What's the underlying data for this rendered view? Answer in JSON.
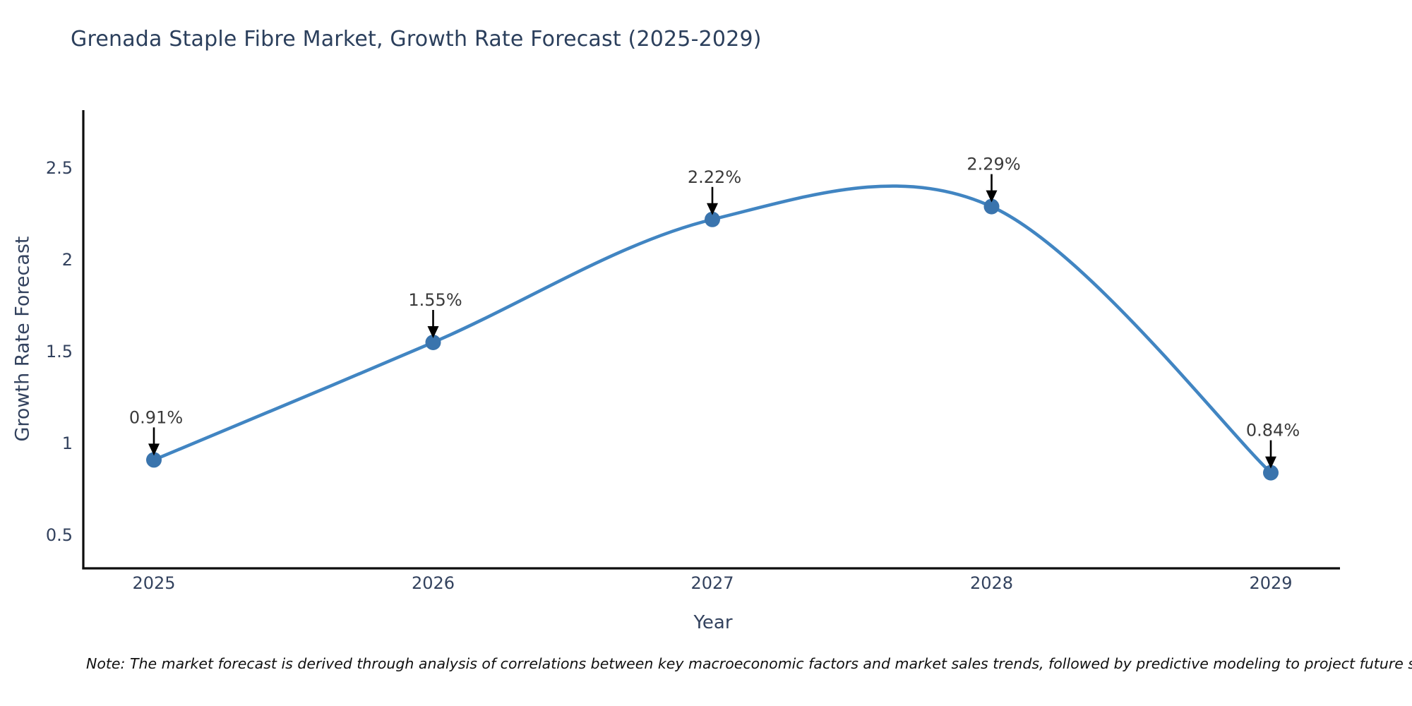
{
  "title": "Grenada Staple Fibre Market, Growth Rate Forecast (2025-2029)",
  "note": "Note: The market forecast is derived through analysis of correlations between key macroeconomic factors and market sales trends, followed by predictive modeling to project future sales",
  "chart_data": {
    "type": "line",
    "title": "Grenada Staple Fibre Market, Growth Rate Forecast (2025-2029)",
    "xlabel": "Year",
    "ylabel": "Growth Rate Forecast",
    "x": [
      2025,
      2026,
      2027,
      2028,
      2029
    ],
    "values": [
      0.91,
      1.55,
      2.22,
      2.29,
      0.84
    ],
    "point_labels": [
      "0.91%",
      "1.55%",
      "2.22%",
      "2.29%",
      "0.84%"
    ],
    "xtick_labels": [
      "2025",
      "2026",
      "2027",
      "2028",
      "2029"
    ],
    "yticks": [
      0.5,
      1,
      1.5,
      2,
      2.5
    ],
    "ytick_labels": [
      "0.5",
      "1",
      "1.5",
      "2",
      "2.5"
    ],
    "ylim": [
      0.41,
      2.8
    ],
    "grid": false,
    "legend_position": "none",
    "line_shape": "spline",
    "colors": {
      "line": "#4185c2",
      "marker": "#3a74ad",
      "arrow": "#000000",
      "axis": "#0d0d0d",
      "title": "#2b3f5c",
      "tick": "#33425e",
      "annotation": "#3a3a3a"
    }
  }
}
